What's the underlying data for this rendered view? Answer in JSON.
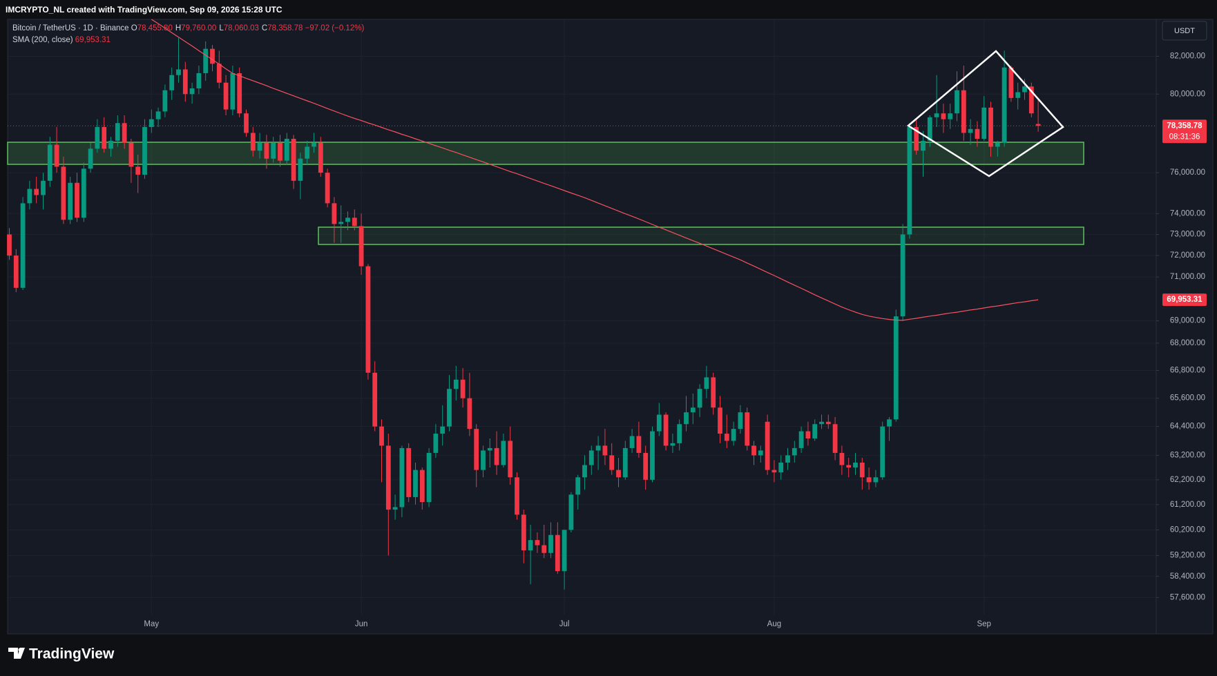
{
  "header": {
    "credit": "IMCRYPTO_NL created with TradingView.com, Sep 09, 2026 15:28 UTC"
  },
  "footer": {
    "brand": "TradingView"
  },
  "chart_data": {
    "type": "candlestick",
    "symbol": "Bitcoin / TetherUS · 1D · Binance",
    "ohlc_labels": [
      {
        "key": "O",
        "text": "78,455.80"
      },
      {
        "key": "H",
        "text": "79,760.00"
      },
      {
        "key": "L",
        "text": "78,060.03"
      },
      {
        "key": "C",
        "text": "78,358.78"
      }
    ],
    "change": "−97.02 (−0.12%)",
    "currency": "USDT",
    "up_color": "#089981",
    "down_color": "#f23645",
    "log_scale": true,
    "grid": true,
    "ylim": [
      56300,
      84000
    ],
    "yticks": [
      {
        "value": 82000,
        "label": "82,000.00"
      },
      {
        "value": 80000,
        "label": "80,000.00"
      },
      {
        "value": 76000,
        "label": "76,000.00"
      },
      {
        "value": 74000,
        "label": "74,000.00"
      },
      {
        "value": 73000,
        "label": "73,000.00"
      },
      {
        "value": 72000,
        "label": "72,000.00"
      },
      {
        "value": 71000,
        "label": "71,000.00"
      },
      {
        "value": 69000,
        "label": "69,000.00"
      },
      {
        "value": 68000,
        "label": "68,000.00"
      },
      {
        "value": 66800,
        "label": "66,800.00"
      },
      {
        "value": 65600,
        "label": "65,600.00"
      },
      {
        "value": 64400,
        "label": "64,400.00"
      },
      {
        "value": 63200,
        "label": "63,200.00"
      },
      {
        "value": 62200,
        "label": "62,200.00"
      },
      {
        "value": 61200,
        "label": "61,200.00"
      },
      {
        "value": 60200,
        "label": "60,200.00"
      },
      {
        "value": 59200,
        "label": "59,200.00"
      },
      {
        "value": 58400,
        "label": "58,400.00"
      },
      {
        "value": 57600,
        "label": "57,600.00"
      }
    ],
    "price_tags": [
      {
        "value": 78358.78,
        "label": "78,358.78",
        "countdown": "08:31:36",
        "color": "#f23645"
      },
      {
        "value": 69953.31,
        "label": "69,953.31",
        "color": "#f23645"
      }
    ],
    "categories": [
      null,
      null,
      null,
      null,
      null,
      null,
      null,
      null,
      null,
      null,
      null,
      null,
      null,
      null,
      null,
      null,
      null,
      null,
      null,
      null,
      null,
      "May",
      null,
      null,
      null,
      null,
      null,
      null,
      null,
      null,
      null,
      null,
      null,
      null,
      null,
      null,
      null,
      null,
      null,
      null,
      null,
      null,
      null,
      null,
      null,
      null,
      null,
      null,
      null,
      null,
      null,
      null,
      "Jun",
      null,
      null,
      null,
      null,
      null,
      null,
      null,
      null,
      null,
      null,
      null,
      null,
      null,
      null,
      null,
      null,
      null,
      null,
      null,
      null,
      null,
      null,
      null,
      null,
      null,
      null,
      null,
      null,
      null,
      "Jul",
      null,
      null,
      null,
      null,
      null,
      null,
      null,
      null,
      null,
      null,
      null,
      null,
      null,
      null,
      null,
      null,
      null,
      null,
      null,
      null,
      null,
      null,
      null,
      null,
      null,
      null,
      null,
      null,
      null,
      null,
      "Aug",
      null,
      null,
      null,
      null,
      null,
      null,
      null,
      null,
      null,
      null,
      null,
      null,
      null,
      null,
      null,
      null,
      null,
      null,
      null,
      null,
      null,
      null,
      null,
      null,
      null,
      null,
      null,
      null,
      null,
      null,
      "Sep",
      null,
      null,
      null,
      null,
      null,
      null,
      null,
      null
    ],
    "ohlc": [
      [
        73000,
        73300,
        71800,
        72000
      ],
      [
        72000,
        72300,
        70300,
        70500
      ],
      [
        70500,
        74800,
        70400,
        74500
      ],
      [
        74500,
        75600,
        74200,
        75200
      ],
      [
        75200,
        75800,
        74500,
        74900
      ],
      [
        74900,
        76000,
        74200,
        75600
      ],
      [
        75600,
        77800,
        75300,
        77400
      ],
      [
        77400,
        78300,
        76000,
        76300
      ],
      [
        76300,
        76800,
        73500,
        73700
      ],
      [
        73700,
        75800,
        73500,
        75500
      ],
      [
        75500,
        76000,
        73600,
        73800
      ],
      [
        73800,
        76500,
        73600,
        76200
      ],
      [
        76200,
        77500,
        76000,
        77200
      ],
      [
        77200,
        78700,
        77000,
        78300
      ],
      [
        78300,
        78800,
        77000,
        77200
      ],
      [
        77200,
        77800,
        76800,
        77600
      ],
      [
        77600,
        78900,
        77300,
        78500
      ],
      [
        78500,
        78900,
        77200,
        77500
      ],
      [
        77500,
        77700,
        75500,
        76300
      ],
      [
        76300,
        76900,
        75000,
        75900
      ],
      [
        75900,
        78700,
        75700,
        78300
      ],
      [
        78300,
        79200,
        78000,
        78700
      ],
      [
        78700,
        79300,
        78300,
        79100
      ],
      [
        79100,
        80500,
        78800,
        80200
      ],
      [
        80200,
        81400,
        79700,
        81000
      ],
      [
        81000,
        83000,
        80600,
        81300
      ],
      [
        81300,
        81700,
        79600,
        80000
      ],
      [
        80000,
        80600,
        79500,
        80300
      ],
      [
        80300,
        81500,
        80000,
        81100
      ],
      [
        81100,
        82800,
        80700,
        82400
      ],
      [
        82400,
        82600,
        81200,
        81600
      ],
      [
        81600,
        82300,
        80300,
        80600
      ],
      [
        80600,
        81000,
        78900,
        79200
      ],
      [
        79200,
        81500,
        78900,
        81100
      ],
      [
        81100,
        81400,
        78800,
        79000
      ],
      [
        79000,
        79200,
        77800,
        78000
      ],
      [
        78000,
        78300,
        76800,
        77100
      ],
      [
        77100,
        78000,
        76700,
        77500
      ],
      [
        77500,
        77900,
        76200,
        76700
      ],
      [
        76700,
        77800,
        76500,
        77500
      ],
      [
        77500,
        77900,
        76300,
        76600
      ],
      [
        76600,
        78000,
        76400,
        77700
      ],
      [
        77700,
        77900,
        75200,
        75600
      ],
      [
        75600,
        77000,
        74700,
        76700
      ],
      [
        76700,
        77600,
        76400,
        77300
      ],
      [
        77300,
        78000,
        77000,
        77500
      ],
      [
        77500,
        77800,
        75800,
        76000
      ],
      [
        76000,
        76200,
        74300,
        74500
      ],
      [
        74500,
        74800,
        72600,
        73500
      ],
      [
        73500,
        74400,
        72600,
        73600
      ],
      [
        73600,
        74100,
        73200,
        73800
      ],
      [
        73800,
        74200,
        73200,
        73400
      ],
      [
        73400,
        74000,
        71100,
        71500
      ],
      [
        71500,
        71600,
        66400,
        66700
      ],
      [
        66700,
        67200,
        64200,
        64400
      ],
      [
        64400,
        64700,
        62100,
        63600
      ],
      [
        63600,
        64100,
        59200,
        61000
      ],
      [
        61000,
        61600,
        60600,
        61100
      ],
      [
        61100,
        63600,
        60700,
        63500
      ],
      [
        63500,
        63700,
        61300,
        61500
      ],
      [
        61500,
        62900,
        61200,
        62600
      ],
      [
        62600,
        62700,
        61000,
        61300
      ],
      [
        61300,
        63500,
        61100,
        63300
      ],
      [
        63300,
        64500,
        63100,
        64100
      ],
      [
        64100,
        65300,
        63600,
        64400
      ],
      [
        64400,
        66600,
        64200,
        66000
      ],
      [
        66000,
        67000,
        65500,
        66400
      ],
      [
        66400,
        66900,
        65200,
        65600
      ],
      [
        65600,
        66700,
        64000,
        64300
      ],
      [
        64300,
        64500,
        61900,
        62600
      ],
      [
        62600,
        63600,
        62300,
        63400
      ],
      [
        63400,
        63900,
        62700,
        63500
      ],
      [
        63500,
        64200,
        62400,
        62800
      ],
      [
        62800,
        64100,
        62700,
        63800
      ],
      [
        63800,
        64400,
        62000,
        62300
      ],
      [
        62300,
        62500,
        60600,
        60800
      ],
      [
        60800,
        61000,
        58900,
        59400
      ],
      [
        59400,
        60400,
        58100,
        59800
      ],
      [
        59800,
        60100,
        59300,
        59600
      ],
      [
        59600,
        60400,
        59100,
        59300
      ],
      [
        59300,
        60500,
        59100,
        60000
      ],
      [
        60000,
        60500,
        58500,
        58600
      ],
      [
        58600,
        60200,
        57900,
        60200
      ],
      [
        60200,
        61700,
        60100,
        61600
      ],
      [
        61600,
        62400,
        61000,
        62300
      ],
      [
        62300,
        63200,
        61800,
        62800
      ],
      [
        62800,
        63600,
        62400,
        63400
      ],
      [
        63400,
        64000,
        62600,
        63600
      ],
      [
        63600,
        64300,
        62800,
        63200
      ],
      [
        63200,
        63700,
        62400,
        62600
      ],
      [
        62600,
        63100,
        61900,
        62300
      ],
      [
        62300,
        63800,
        62200,
        63500
      ],
      [
        63500,
        64300,
        63300,
        64000
      ],
      [
        64000,
        64600,
        63100,
        63300
      ],
      [
        63300,
        63600,
        61800,
        62200
      ],
      [
        62200,
        64400,
        62100,
        64200
      ],
      [
        64200,
        65400,
        64000,
        64900
      ],
      [
        64900,
        65000,
        63400,
        63600
      ],
      [
        63600,
        64100,
        63300,
        63700
      ],
      [
        63700,
        64700,
        63400,
        64500
      ],
      [
        64500,
        65700,
        64200,
        65000
      ],
      [
        65000,
        65800,
        64500,
        65200
      ],
      [
        65200,
        66200,
        64800,
        66000
      ],
      [
        66000,
        67000,
        65600,
        66500
      ],
      [
        66500,
        66700,
        64900,
        65200
      ],
      [
        65200,
        65700,
        63700,
        64100
      ],
      [
        64100,
        64900,
        63500,
        63800
      ],
      [
        63800,
        64600,
        63600,
        64300
      ],
      [
        64300,
        65300,
        64100,
        65000
      ],
      [
        65000,
        65200,
        63400,
        63600
      ],
      [
        63600,
        63800,
        62800,
        63200
      ],
      [
        63200,
        63600,
        62900,
        63400
      ],
      [
        64600,
        64900,
        62400,
        62600
      ],
      [
        62600,
        63000,
        62100,
        62500
      ],
      [
        62500,
        63200,
        62200,
        62900
      ],
      [
        62900,
        63500,
        62600,
        63200
      ],
      [
        63200,
        63800,
        62900,
        63500
      ],
      [
        63500,
        64400,
        63300,
        64200
      ],
      [
        64200,
        64600,
        63600,
        63900
      ],
      [
        63900,
        64700,
        63800,
        64500
      ],
      [
        64500,
        64900,
        64300,
        64600
      ],
      [
        64600,
        64900,
        64300,
        64500
      ],
      [
        64500,
        64800,
        63000,
        63300
      ],
      [
        63300,
        63600,
        62400,
        62800
      ],
      [
        62800,
        63100,
        62300,
        62700
      ],
      [
        62700,
        63300,
        62400,
        62900
      ],
      [
        62900,
        63100,
        61800,
        62300
      ],
      [
        62300,
        62700,
        61800,
        62100
      ],
      [
        62100,
        62600,
        61900,
        62300
      ],
      [
        62300,
        64600,
        62200,
        64400
      ],
      [
        64400,
        64800,
        63800,
        64700
      ],
      [
        64700,
        69500,
        64600,
        69200
      ],
      [
        69200,
        73500,
        69000,
        73000
      ],
      [
        73000,
        78500,
        72800,
        78300
      ],
      [
        78300,
        78700,
        76900,
        77100
      ],
      [
        77100,
        78100,
        75800,
        77600
      ],
      [
        77600,
        78900,
        77300,
        78800
      ],
      [
        78800,
        81000,
        78300,
        79000
      ],
      [
        79000,
        79500,
        78000,
        78700
      ],
      [
        78700,
        79500,
        78200,
        79000
      ],
      [
        79000,
        81200,
        78600,
        80200
      ],
      [
        80200,
        81500,
        77600,
        78000
      ],
      [
        78000,
        78700,
        77400,
        78200
      ],
      [
        78200,
        78600,
        77300,
        77700
      ],
      [
        77700,
        79900,
        77600,
        79300
      ],
      [
        79300,
        79600,
        76800,
        77300
      ],
      [
        77300,
        77600,
        76800,
        77500
      ],
      [
        77500,
        82300,
        77300,
        81400
      ],
      [
        81400,
        81500,
        79600,
        79800
      ],
      [
        79800,
        80600,
        79200,
        80100
      ],
      [
        80100,
        80800,
        79700,
        80400
      ],
      [
        80400,
        80600,
        78800,
        79000
      ],
      [
        78455.8,
        79760,
        78060.03,
        78358.78
      ]
    ],
    "series": [
      {
        "name": "SMA (200, close)",
        "color": "#f7525f",
        "values": [
          null,
          null,
          null,
          null,
          null,
          null,
          null,
          null,
          null,
          null,
          null,
          null,
          null,
          null,
          null,
          null,
          null,
          null,
          null,
          null,
          null,
          84000,
          83760,
          83520,
          83270,
          83030,
          82790,
          82550,
          82300,
          82060,
          81820,
          81580,
          81330,
          81090,
          80960,
          80830,
          80700,
          80570,
          80440,
          80300,
          80170,
          80040,
          79910,
          79780,
          79650,
          79520,
          79390,
          79250,
          79120,
          78990,
          78860,
          78740,
          78630,
          78510,
          78400,
          78280,
          78160,
          78050,
          77930,
          77820,
          77700,
          77590,
          77470,
          77350,
          77240,
          77120,
          77010,
          76890,
          76770,
          76650,
          76540,
          76420,
          76300,
          76180,
          76060,
          75950,
          75830,
          75710,
          75590,
          75470,
          75360,
          75240,
          75120,
          75000,
          74890,
          74770,
          74640,
          74510,
          74380,
          74250,
          74120,
          73990,
          73870,
          73740,
          73610,
          73480,
          73350,
          73220,
          73090,
          72960,
          72830,
          72700,
          72580,
          72450,
          72320,
          72190,
          72060,
          71930,
          71800,
          71650,
          71510,
          71360,
          71210,
          71070,
          70920,
          70770,
          70620,
          70480,
          70330,
          70180,
          70040,
          69900,
          69760,
          69620,
          69500,
          69390,
          69290,
          69210,
          69150,
          69100,
          69060,
          69030,
          69020,
          69070,
          69110,
          69160,
          69210,
          69250,
          69300,
          69350,
          69390,
          69440,
          69490,
          69530,
          69580,
          69630,
          69670,
          69720,
          69770,
          69820,
          69860,
          69910,
          69953.31
        ]
      }
    ]
  }
}
